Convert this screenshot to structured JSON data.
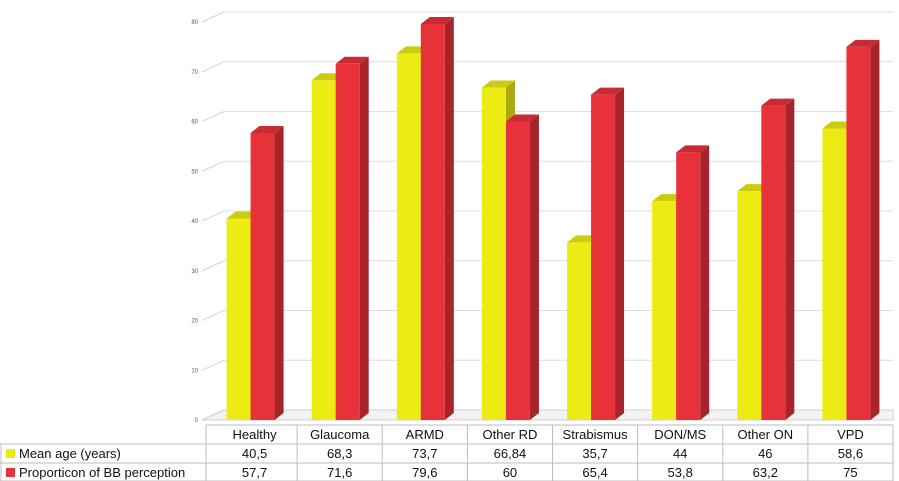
{
  "chart_data": {
    "type": "bar",
    "categories": [
      "Healthy",
      "Glaucoma",
      "ARMD",
      "Other RD",
      "Strabismus",
      "DON/MS",
      "Other ON",
      "VPD"
    ],
    "series": [
      {
        "name": "Mean age (years)",
        "color": "#ecec14",
        "values": [
          40.5,
          68.3,
          73.7,
          66.84,
          35.7,
          44,
          46,
          58.6
        ],
        "labels": [
          "40,5",
          "68,3",
          "73,7",
          "66,84",
          "35,7",
          "44",
          "46",
          "58,6"
        ]
      },
      {
        "name": "Proporticon of BB perception",
        "color": "#e8323a",
        "values": [
          57.7,
          71.6,
          79.6,
          60,
          65.4,
          53.8,
          63.2,
          75
        ],
        "labels": [
          "57,7",
          "71,6",
          "79,6",
          "60",
          "65,4",
          "53,8",
          "63,2",
          "75"
        ]
      }
    ],
    "yticks": [
      "0",
      "10",
      "20",
      "30",
      "40",
      "50",
      "60",
      "70",
      "80"
    ],
    "ylim": [
      0,
      80
    ],
    "grid": true,
    "legend": "data-table-left"
  }
}
